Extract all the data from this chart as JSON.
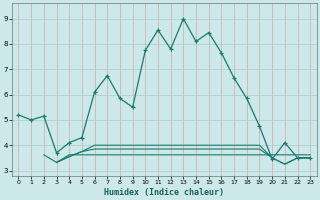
{
  "xlabel": "Humidex (Indice chaleur)",
  "bg_color": "#cce8e8",
  "grid_color": "#aaaaaa",
  "line_color": "#1a7a6e",
  "xlim": [
    -0.5,
    23.5
  ],
  "ylim": [
    2.8,
    9.6
  ],
  "yticks": [
    3,
    4,
    5,
    6,
    7,
    8,
    9
  ],
  "xticks": [
    0,
    1,
    2,
    3,
    4,
    5,
    6,
    7,
    8,
    9,
    10,
    11,
    12,
    13,
    14,
    15,
    16,
    17,
    18,
    19,
    20,
    21,
    22,
    23
  ],
  "main_line": {
    "x": [
      0,
      1,
      2,
      3,
      4,
      5,
      6,
      7,
      8,
      9,
      10,
      11,
      12,
      13,
      14,
      15,
      16,
      17,
      18,
      19,
      20,
      21,
      22,
      23
    ],
    "y": [
      5.2,
      5.0,
      5.15,
      3.7,
      4.1,
      4.3,
      6.1,
      6.75,
      5.85,
      5.5,
      7.75,
      8.55,
      7.8,
      9.0,
      8.1,
      8.45,
      7.65,
      6.65,
      5.85,
      4.75,
      3.45,
      4.1,
      3.5,
      3.5
    ]
  },
  "flat_line1": {
    "x": [
      2,
      3,
      4,
      5,
      6,
      7,
      8,
      9,
      10,
      11,
      12,
      13,
      14,
      15,
      16,
      17,
      18,
      19,
      20,
      21,
      22,
      23
    ],
    "y": [
      3.62,
      3.32,
      3.62,
      3.62,
      3.62,
      3.62,
      3.62,
      3.62,
      3.62,
      3.62,
      3.62,
      3.62,
      3.62,
      3.62,
      3.62,
      3.62,
      3.62,
      3.62,
      3.62,
      3.62,
      3.62,
      3.62
    ]
  },
  "flat_line2": {
    "x": [
      3,
      4,
      5,
      6,
      7,
      8,
      9,
      10,
      11,
      12,
      13,
      14,
      15,
      16,
      17,
      18,
      19,
      20,
      21,
      22,
      23
    ],
    "y": [
      3.32,
      3.55,
      3.75,
      3.85,
      3.85,
      3.85,
      3.85,
      3.85,
      3.85,
      3.85,
      3.85,
      3.85,
      3.85,
      3.85,
      3.85,
      3.85,
      3.85,
      3.5,
      3.25,
      3.5,
      3.5
    ]
  },
  "flat_line3": {
    "x": [
      3,
      4,
      5,
      6,
      7,
      8,
      9,
      10,
      11,
      12,
      13,
      14,
      15,
      16,
      17,
      18,
      19,
      20,
      21,
      22,
      23
    ],
    "y": [
      3.32,
      3.55,
      3.75,
      4.0,
      4.0,
      4.0,
      4.0,
      4.0,
      4.0,
      4.0,
      4.0,
      4.0,
      4.0,
      4.0,
      4.0,
      4.0,
      4.0,
      3.5,
      3.25,
      3.5,
      3.5
    ]
  }
}
